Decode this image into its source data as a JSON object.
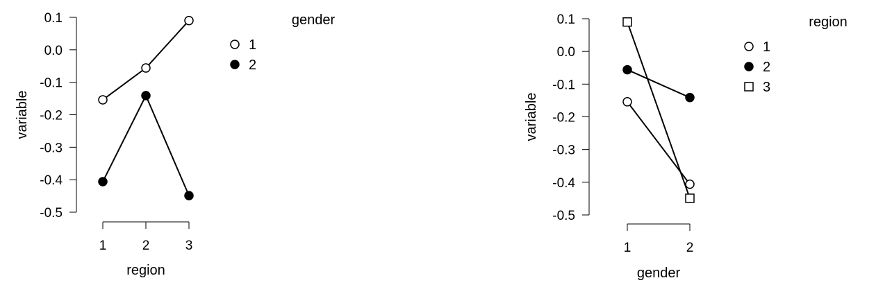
{
  "chart_data": [
    {
      "type": "line",
      "xlabel": "region",
      "ylabel": "variable",
      "categories": [
        "1",
        "2",
        "3"
      ],
      "ylim": [
        -0.5,
        0.1
      ],
      "yticks": [
        "0.1",
        "0.0",
        "-0.1",
        "-0.2",
        "-0.3",
        "-0.4",
        "-0.5"
      ],
      "legend_title": "gender",
      "legend_position": "right",
      "series": [
        {
          "name": "1",
          "marker": "open-circle",
          "values": [
            -0.154,
            -0.056,
            0.09
          ]
        },
        {
          "name": "2",
          "marker": "filled-circle",
          "values": [
            -0.406,
            -0.141,
            -0.449
          ]
        }
      ]
    },
    {
      "type": "line",
      "xlabel": "gender",
      "ylabel": "variable",
      "categories": [
        "1",
        "2"
      ],
      "ylim": [
        -0.5,
        0.1
      ],
      "yticks": [
        "0.1",
        "0.0",
        "-0.1",
        "-0.2",
        "-0.3",
        "-0.4",
        "-0.5"
      ],
      "legend_title": "region",
      "legend_position": "right",
      "series": [
        {
          "name": "1",
          "marker": "open-circle",
          "values": [
            -0.154,
            -0.406
          ]
        },
        {
          "name": "2",
          "marker": "filled-circle",
          "values": [
            -0.056,
            -0.141
          ]
        },
        {
          "name": "3",
          "marker": "open-square",
          "values": [
            0.09,
            -0.449
          ]
        }
      ]
    }
  ]
}
